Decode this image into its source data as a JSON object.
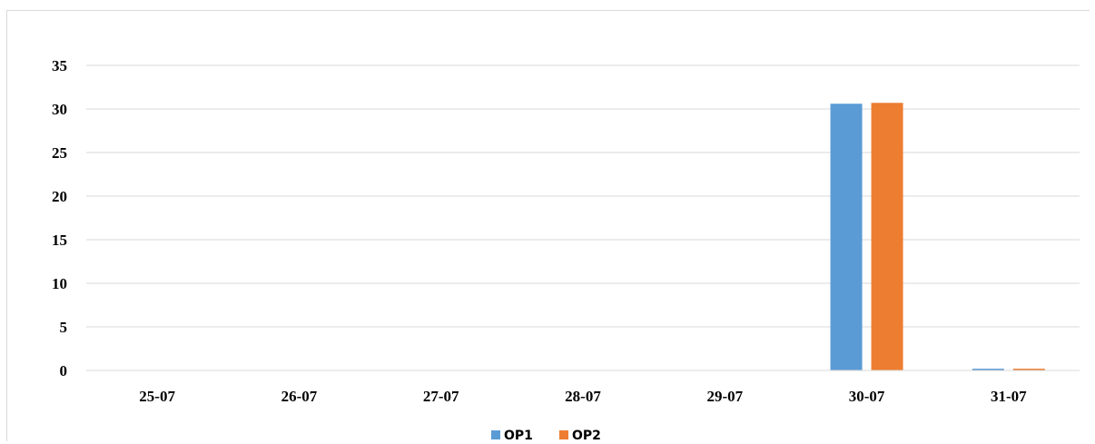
{
  "chart_data": {
    "type": "bar",
    "title": "",
    "xlabel": "",
    "ylabel": "",
    "categories": [
      "25-07",
      "26-07",
      "27-07",
      "28-07",
      "29-07",
      "30-07",
      "31-07"
    ],
    "series": [
      {
        "name": "OP1",
        "color": "#5b9bd5",
        "values": [
          0,
          0,
          0,
          0,
          0,
          30.6,
          0.2
        ]
      },
      {
        "name": "OP2",
        "color": "#ed7d31",
        "values": [
          0,
          0,
          0,
          0,
          0,
          30.7,
          0.2
        ]
      }
    ],
    "ylim": [
      0,
      35
    ],
    "yticks": [
      0,
      5,
      10,
      15,
      20,
      25,
      30,
      35
    ],
    "grid": true,
    "legend": "bottom-center"
  }
}
